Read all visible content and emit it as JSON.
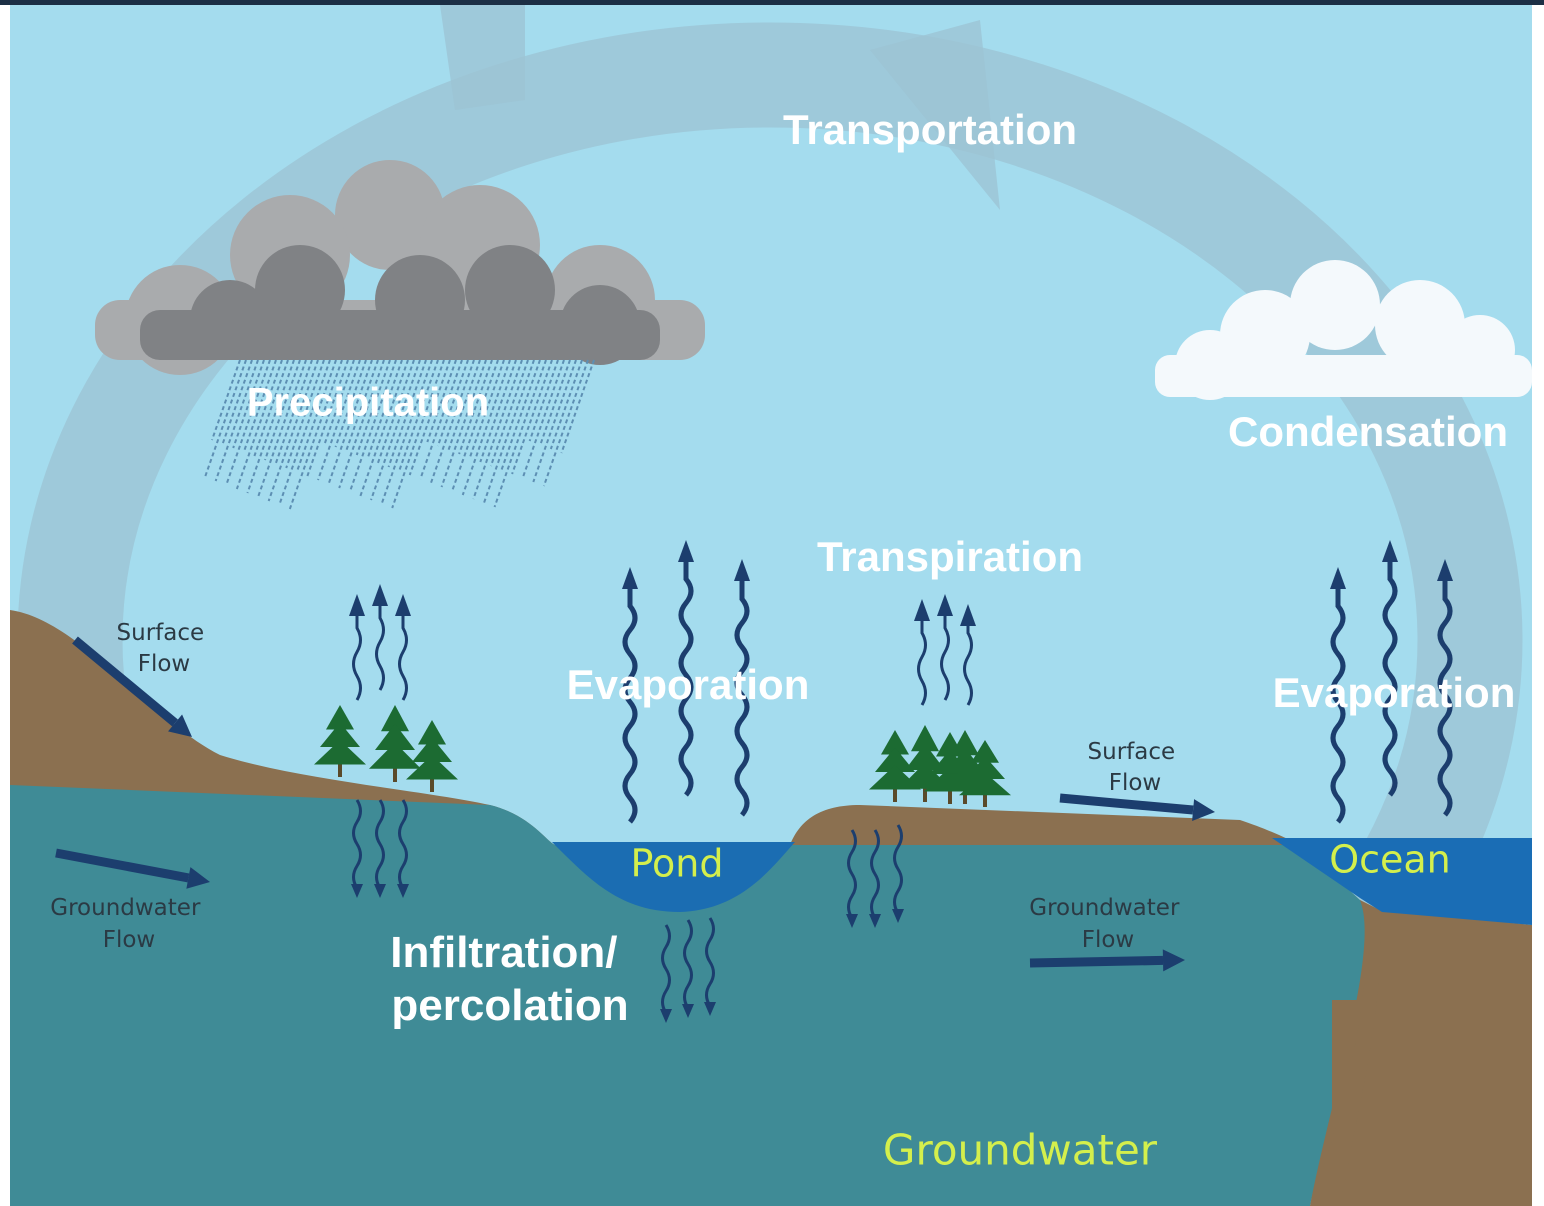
{
  "labels": {
    "transportation": "Transportation",
    "precipitation": "Precipitation",
    "condensation": "Condensation",
    "transpiration": "Transpiration",
    "evaporation_pond": "Evaporation",
    "evaporation_ocean": "Evaporation",
    "surface_flow_left": [
      "Surface",
      "Flow"
    ],
    "surface_flow_right": [
      "Surface",
      "Flow"
    ],
    "groundwater_flow_left": [
      "Groundwater",
      "Flow"
    ],
    "groundwater_flow_right": [
      "Groundwater",
      "Flow"
    ],
    "pond": "Pond",
    "ocean": "Ocean",
    "infiltration": [
      "Infiltration/",
      "percolation"
    ],
    "groundwater": "Groundwater"
  }
}
